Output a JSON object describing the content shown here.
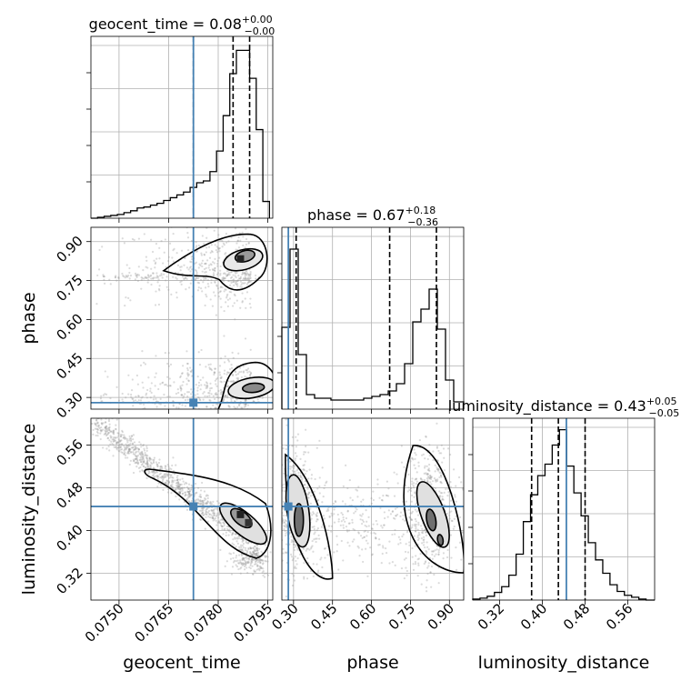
{
  "chart_data": {
    "type": "corner",
    "parameters": [
      "geocent_time",
      "phase",
      "luminosity_distance"
    ],
    "truths": {
      "geocent_time": 0.07725,
      "phase": 0.28,
      "luminosity_distance": 0.445
    },
    "colors": {
      "truth": "#4682b4",
      "hist": "#000000",
      "grid": "#b0b0b0",
      "scatter": "#999999"
    },
    "grid": true,
    "panels": [
      {
        "name": "hist-geocent_time",
        "xrange": [
          0.07415,
          0.07965
        ],
        "title": {
          "base": "geocent_time = 0.08",
          "sup": "+0.00",
          "sub": "−0.00"
        },
        "quantiles": [
          0.07725,
          0.07845,
          0.07895
        ],
        "bins_edges": [
          0.07415,
          0.07435,
          0.07455,
          0.07475,
          0.07495,
          0.07515,
          0.07535,
          0.07555,
          0.07575,
          0.07595,
          0.07615,
          0.07635,
          0.07655,
          0.07675,
          0.07695,
          0.07715,
          0.07735,
          0.07755,
          0.07775,
          0.07795,
          0.07815,
          0.07835,
          0.07855,
          0.07875,
          0.07895,
          0.07915,
          0.07935,
          0.07955
        ],
        "counts": [
          0,
          1,
          2,
          3,
          4,
          6,
          8,
          11,
          12,
          14,
          16,
          19,
          22,
          25,
          28,
          33,
          38,
          40,
          50,
          72,
          110,
          155,
          180,
          180,
          150,
          95,
          18
        ],
        "ymax": 195
      },
      {
        "name": "hist-phase",
        "xrange": [
          0.255,
          0.955
        ],
        "title": {
          "base": "phase = 0.67",
          "sup": "+0.18",
          "sub": "−0.36"
        },
        "quantiles": [
          0.31,
          0.67,
          0.85
        ],
        "bins_edges": [
          0.255,
          0.2865,
          0.318,
          0.3495,
          0.381,
          0.4125,
          0.444,
          0.4755,
          0.507,
          0.5385,
          0.57,
          0.6015,
          0.633,
          0.6645,
          0.696,
          0.7275,
          0.759,
          0.7905,
          0.822,
          0.8535,
          0.885,
          0.9165,
          0.955
        ],
        "counts": [
          45,
          88,
          30,
          8,
          6,
          6,
          5,
          5,
          5,
          5,
          6,
          7,
          8,
          10,
          14,
          25,
          48,
          55,
          66,
          44,
          16,
          4
        ],
        "ymax": 100
      },
      {
        "name": "hist-luminosity_distance",
        "xrange": [
          0.27,
          0.61
        ],
        "title": {
          "base": "luminosity_distance = 0.43",
          "sup": "+0.05",
          "sub": "−0.05"
        },
        "quantiles": [
          0.38,
          0.43,
          0.48
        ],
        "bins_edges": [
          0.27,
          0.2835,
          0.297,
          0.3105,
          0.324,
          0.3375,
          0.351,
          0.3645,
          0.378,
          0.3915,
          0.405,
          0.4185,
          0.432,
          0.4455,
          0.459,
          0.4725,
          0.486,
          0.4995,
          0.513,
          0.5265,
          0.54,
          0.5535,
          0.567,
          0.5805,
          0.594,
          0.61
        ],
        "counts": [
          1,
          2,
          4,
          8,
          14,
          26,
          48,
          82,
          110,
          130,
          142,
          162,
          178,
          140,
          112,
          88,
          60,
          42,
          28,
          16,
          9,
          5,
          3,
          1,
          0
        ],
        "ymax": 190
      },
      {
        "name": "2d-phase-vs-geocent_time",
        "x": "geocent_time",
        "y": "phase",
        "xrange": [
          0.07415,
          0.07965
        ],
        "yrange": [
          0.255,
          0.955
        ],
        "density_peaks": [
          {
            "x": 0.0787,
            "y": 0.83,
            "note": "upper mode"
          },
          {
            "x": 0.0789,
            "y": 0.33,
            "note": "lower mode"
          }
        ]
      },
      {
        "name": "2d-luminosity_distance-vs-geocent_time",
        "x": "geocent_time",
        "y": "luminosity_distance",
        "xrange": [
          0.07415,
          0.07965
        ],
        "yrange": [
          0.27,
          0.61
        ],
        "density_peaks": [
          {
            "x": 0.0787,
            "y": 0.43
          }
        ]
      },
      {
        "name": "2d-luminosity_distance-vs-phase",
        "x": "phase",
        "y": "luminosity_distance",
        "xrange": [
          0.255,
          0.955
        ],
        "yrange": [
          0.27,
          0.61
        ],
        "density_peaks": [
          {
            "x": 0.31,
            "y": 0.43
          },
          {
            "x": 0.83,
            "y": 0.43
          }
        ]
      }
    ],
    "axes": {
      "geocent_time": {
        "label": "geocent_time",
        "ticks": [
          0.075,
          0.0765,
          0.078,
          0.0795
        ],
        "tick_labels": [
          "0.0750",
          "0.0765",
          "0.0780",
          "0.0795"
        ]
      },
      "phase": {
        "label": "phase",
        "ticks": [
          0.3,
          0.45,
          0.6,
          0.75,
          0.9
        ],
        "tick_labels": [
          "0.30",
          "0.45",
          "0.60",
          "0.75",
          "0.90"
        ]
      },
      "luminosity_distance": {
        "label": "luminosity_distance",
        "ticks": [
          0.32,
          0.4,
          0.48,
          0.56
        ],
        "tick_labels": [
          "0.32",
          "0.40",
          "0.48",
          "0.56"
        ]
      }
    }
  }
}
